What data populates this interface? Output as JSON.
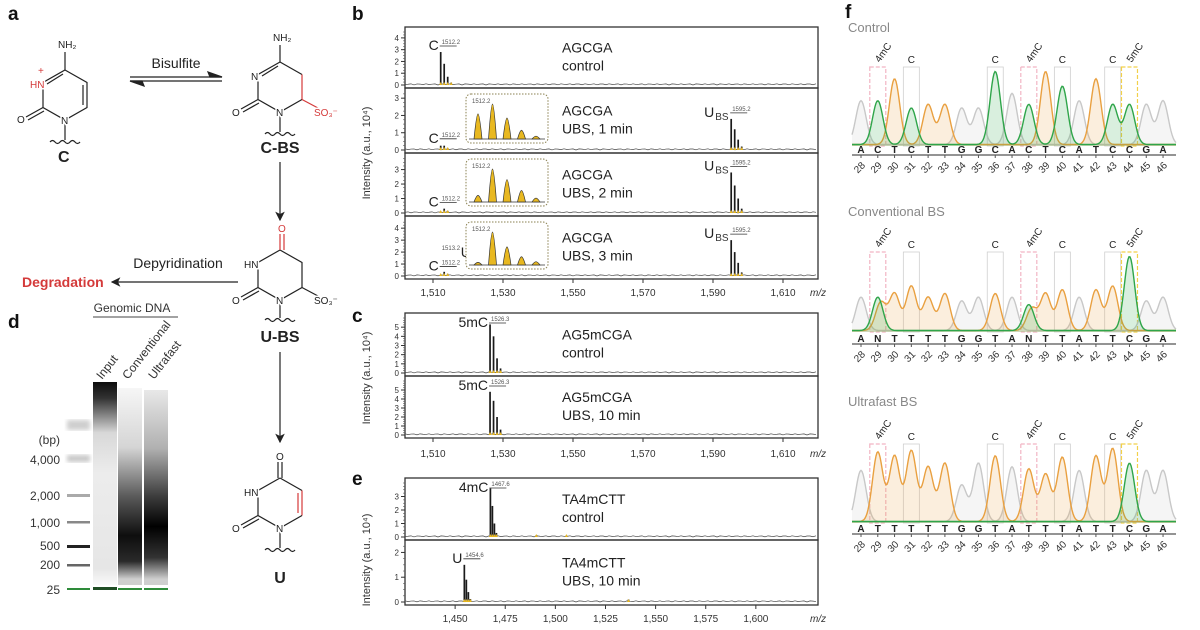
{
  "panel_a": {
    "label": "a",
    "reagent": "Bisulfite",
    "side_reaction": "Depyridination",
    "side_product": "Degradation",
    "compounds": {
      "c": "C",
      "c_bs": "C-BS",
      "u_bs": "U-BS",
      "u": "U"
    },
    "atoms": {
      "nh2": "NH₂",
      "hn": "HN",
      "n": "N",
      "o": "O",
      "so3": "SO₃⁻",
      "plus": "+"
    }
  },
  "panel_b": {
    "label": "b",
    "ylabel": "Intensity (a.u., 10⁴)",
    "xlabel": "m/z",
    "xrange": [
      1502,
      1620
    ],
    "xticks": [
      "1,510",
      "1,530",
      "1,550",
      "1,570",
      "1,590",
      "1,610"
    ],
    "subpanels": [
      {
        "title": "AGCGA",
        "condition": "control",
        "ymax": 4.5,
        "yticks": [
          0,
          1,
          2,
          3,
          4
        ],
        "annotations": [
          {
            "species": "C",
            "sub": "",
            "mass": "1512.2",
            "mz": 1512.2
          }
        ],
        "peaks": [
          [
            1512.2,
            2.8
          ],
          [
            1513.2,
            1.8
          ],
          [
            1514.2,
            0.7
          ],
          [
            1515.2,
            0.2
          ]
        ]
      },
      {
        "title": "AGCGA",
        "condition": "UBS, 1 min",
        "ymax": 3.3,
        "yticks": [
          0,
          1,
          2,
          3
        ],
        "annotations": [
          {
            "species": "C",
            "sub": "",
            "mass": "1512.2",
            "mz": 1512.2
          },
          {
            "species": "U",
            "sub": "BS",
            "mass": "1595.2",
            "mz": 1595.2
          }
        ],
        "peaks": [
          [
            1512.2,
            0.25
          ],
          [
            1513.2,
            0.25
          ],
          [
            1514.2,
            0.12
          ],
          [
            1595.2,
            1.8
          ],
          [
            1596.2,
            1.2
          ],
          [
            1597.2,
            0.6
          ],
          [
            1598.2,
            0.2
          ]
        ],
        "inset": {
          "mass": "1512.2",
          "peaks": [
            0.72,
            1.0,
            0.6,
            0.25,
            0.08
          ]
        }
      },
      {
        "title": "AGCGA",
        "condition": "UBS, 2 min",
        "ymax": 3.8,
        "yticks": [
          0,
          1,
          2,
          3
        ],
        "annotations": [
          {
            "species": "C",
            "sub": "",
            "mass": "1512.2",
            "mz": 1512.2
          },
          {
            "species": "U",
            "sub": "BS",
            "mass": "1595.2",
            "mz": 1595.2
          }
        ],
        "peaks": [
          [
            1512.2,
            0.1
          ],
          [
            1513.2,
            0.3
          ],
          [
            1514.2,
            0.15
          ],
          [
            1595.2,
            2.8
          ],
          [
            1596.2,
            1.9
          ],
          [
            1597.2,
            1.0
          ],
          [
            1598.2,
            0.3
          ]
        ],
        "inset": {
          "mass": "1512.2",
          "peaks": [
            0.2,
            1.0,
            0.68,
            0.35,
            0.12
          ]
        }
      },
      {
        "title": "AGCGA",
        "condition": "UBS, 3 min",
        "ymax": 4.6,
        "yticks": [
          0,
          1,
          2,
          3,
          4
        ],
        "annotations": [
          {
            "species": "C",
            "sub": "",
            "mass": "1512.2",
            "mz": 1512.2
          },
          {
            "species": "U",
            "sub": "BS",
            "mass": "1595.2",
            "mz": 1595.2
          }
        ],
        "extra_label": {
          "species": "U",
          "mass": "1513.2"
        },
        "peaks": [
          [
            1512.2,
            0.08
          ],
          [
            1513.2,
            0.35
          ],
          [
            1514.2,
            0.18
          ],
          [
            1595.2,
            3.0
          ],
          [
            1596.2,
            2.0
          ],
          [
            1597.2,
            1.1
          ],
          [
            1598.2,
            0.3
          ]
        ],
        "inset": {
          "mass": "1512.2",
          "peaks": [
            0.08,
            1.0,
            0.55,
            0.25,
            0.1
          ]
        }
      }
    ]
  },
  "panel_c": {
    "label": "c",
    "ylabel": "Intensity (a.u., 10⁴)",
    "xlabel": "m/z",
    "xrange": [
      1502,
      1620
    ],
    "xticks": [
      "1,510",
      "1,530",
      "1,550",
      "1,570",
      "1,590",
      "1,610"
    ],
    "subpanels": [
      {
        "title": "AG5mCGA",
        "condition": "control",
        "ymax": 6,
        "yticks": [
          0,
          1,
          2,
          3,
          4,
          5
        ],
        "annotations": [
          {
            "species": "5mC",
            "sub": "",
            "mass": "1526.3",
            "mz": 1526.3
          }
        ],
        "peaks": [
          [
            1526.3,
            5.3
          ],
          [
            1527.3,
            4.0
          ],
          [
            1528.3,
            1.6
          ],
          [
            1529.3,
            0.5
          ]
        ]
      },
      {
        "title": "AG5mCGA",
        "condition": "UBS, 10 min",
        "ymax": 6,
        "yticks": [
          0,
          1,
          2,
          3,
          4,
          5
        ],
        "annotations": [
          {
            "species": "5mC",
            "sub": "",
            "mass": "1526.3",
            "mz": 1526.3
          }
        ],
        "peaks": [
          [
            1526.3,
            4.8
          ],
          [
            1527.3,
            3.8
          ],
          [
            1528.3,
            2.0
          ],
          [
            1529.3,
            0.6
          ]
        ]
      }
    ]
  },
  "panel_e": {
    "label": "e",
    "ylabel": "Intensity (a.u., 10⁴)",
    "xlabel": "m/z",
    "xrange": [
      1425,
      1631
    ],
    "xticks": [
      "1,450",
      "1,475",
      "1,500",
      "1,525",
      "1,550",
      "1,575",
      "1,600"
    ],
    "subpanels": [
      {
        "title": "TA4mCTT",
        "condition": "control",
        "ymax": 4,
        "yticks": [
          0,
          1,
          2,
          3
        ],
        "annotations": [
          {
            "species": "4mC",
            "sub": "",
            "mass": "1467.6",
            "mz": 1467.6
          }
        ],
        "peaks": [
          [
            1467.6,
            3.6
          ],
          [
            1468.6,
            2.3
          ],
          [
            1469.6,
            1.0
          ],
          [
            1470.6,
            0.3
          ],
          [
            1490.5,
            0.15
          ],
          [
            1505.5,
            0.12
          ]
        ]
      },
      {
        "title": "TA4mCTT",
        "condition": "UBS, 10 min",
        "ymax": 2.3,
        "yticks": [
          0,
          1,
          2
        ],
        "annotations": [
          {
            "species": "U",
            "sub": "",
            "mass": "1454.6",
            "mz": 1454.6
          }
        ],
        "peaks": [
          [
            1454.6,
            1.5
          ],
          [
            1455.6,
            0.9
          ],
          [
            1456.6,
            0.4
          ],
          [
            1457.6,
            0.12
          ],
          [
            1536.5,
            0.1
          ]
        ]
      }
    ]
  },
  "panel_d": {
    "label": "d",
    "group_label": "Genomic DNA",
    "lanes": [
      "Input",
      "Conventional",
      "Ultrafast"
    ],
    "unit": "(bp)",
    "ladder": [
      "4,000",
      "2,000",
      "1,000",
      "500",
      "200",
      "25"
    ],
    "marker_color": "#2e8b3a"
  },
  "panel_f": {
    "label": "f",
    "positions": [
      28,
      29,
      30,
      31,
      32,
      33,
      34,
      35,
      36,
      37,
      38,
      39,
      40,
      41,
      42,
      43,
      44,
      45,
      46
    ],
    "colors": {
      "C": "#2fa54a",
      "T": "#e9a040",
      "A": "#c8c8c8",
      "G": "#c8c8c8",
      "N": "#7a1a8c",
      "4mC": "#f2b5c4",
      "5mC": "#f2d04a",
      "site": "#cfcfcf"
    },
    "annotations": [
      {
        "pos": 29,
        "label": "4mC"
      },
      {
        "pos": 31,
        "label": "C"
      },
      {
        "pos": 36,
        "label": "C"
      },
      {
        "pos": 38,
        "label": "4mC"
      },
      {
        "pos": 40,
        "label": "C"
      },
      {
        "pos": 43,
        "label": "C"
      },
      {
        "pos": 44,
        "label": "5mC"
      }
    ],
    "traces": [
      {
        "title": "Control",
        "bases": [
          "A",
          "C",
          "T",
          "C",
          "T",
          "T",
          "G",
          "G",
          "C",
          "A",
          "C",
          "T",
          "C",
          "A",
          "T",
          "C",
          "C",
          "G",
          "A"
        ],
        "heights": [
          0.6,
          0.6,
          0.9,
          0.5,
          0.55,
          0.55,
          0.5,
          0.5,
          1.0,
          0.7,
          0.55,
          1.0,
          0.8,
          0.6,
          0.9,
          0.55,
          0.55,
          0.55,
          0.6
        ]
      },
      {
        "title": "Conventional BS",
        "bases": [
          "A",
          "N",
          "T",
          "T",
          "T",
          "T",
          "G",
          "G",
          "T",
          "A",
          "N",
          "T",
          "T",
          "A",
          "T",
          "T",
          "C",
          "G",
          "A"
        ],
        "heights": [
          0.45,
          [
            0.45,
            0.38
          ],
          0.5,
          0.6,
          0.45,
          0.5,
          0.4,
          0.45,
          0.5,
          0.45,
          [
            0.35,
            0.3
          ],
          0.5,
          0.55,
          0.45,
          0.55,
          0.6,
          1.0,
          0.4,
          0.45
        ]
      },
      {
        "title": "Ultrafast BS",
        "bases": [
          "A",
          "T",
          "T",
          "T",
          "T",
          "T",
          "G",
          "G",
          "T",
          "A",
          "T",
          "T",
          "T",
          "A",
          "T",
          "T",
          "C",
          "G",
          "A"
        ],
        "heights": [
          0.7,
          0.95,
          0.9,
          0.97,
          0.75,
          0.8,
          0.5,
          0.8,
          0.9,
          0.75,
          0.72,
          0.65,
          0.88,
          0.7,
          0.9,
          1.0,
          0.8,
          0.7,
          0.7
        ]
      }
    ]
  }
}
